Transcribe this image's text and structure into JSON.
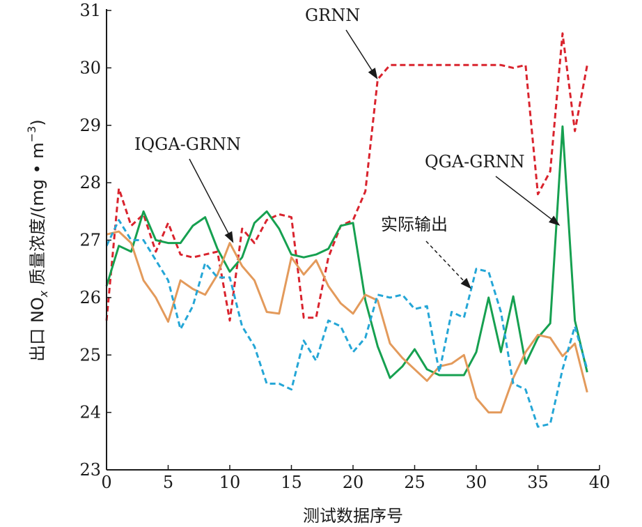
{
  "chart_data": {
    "type": "line",
    "xlabel": "测试数据序号",
    "ylabel_parts": {
      "pre": "出口 NO",
      "sub": "x",
      "mid": " 质量浓度/(mg • m",
      "sup": "−3",
      "post": ")"
    },
    "xlim": [
      0,
      40
    ],
    "ylim": [
      23,
      31
    ],
    "x_ticks": [
      0,
      5,
      10,
      15,
      20,
      25,
      30,
      35,
      40
    ],
    "y_ticks": [
      23,
      24,
      25,
      26,
      27,
      28,
      29,
      30,
      31
    ],
    "grid": false,
    "series": [
      {
        "name": "GRNN",
        "color": "#d9232d",
        "style": "dashed",
        "x": [
          0,
          1,
          2,
          3,
          4,
          5,
          6,
          7,
          8,
          9,
          10,
          11,
          12,
          13,
          14,
          15,
          16,
          17,
          18,
          19,
          20,
          21,
          22,
          23,
          24,
          25,
          26,
          27,
          28,
          29,
          30,
          31,
          32,
          33,
          34,
          35,
          36,
          37,
          38,
          39
        ],
        "y": [
          25.6,
          27.9,
          27.25,
          27.45,
          26.8,
          27.3,
          26.75,
          26.7,
          26.75,
          26.8,
          25.6,
          27.2,
          26.95,
          27.35,
          27.45,
          27.4,
          25.65,
          25.65,
          26.7,
          27.25,
          27.35,
          27.85,
          29.8,
          30.05,
          30.05,
          30.05,
          30.05,
          30.05,
          30.05,
          30.05,
          30.05,
          30.05,
          30.05,
          30.0,
          30.05,
          27.8,
          28.2,
          30.6,
          28.9,
          30.05
        ]
      },
      {
        "name": "QGA-GRNN",
        "color": "#16a050",
        "style": "solid",
        "x": [
          0,
          1,
          2,
          3,
          4,
          5,
          6,
          7,
          8,
          9,
          10,
          11,
          12,
          13,
          14,
          15,
          16,
          17,
          18,
          19,
          20,
          21,
          22,
          23,
          24,
          25,
          26,
          27,
          28,
          29,
          30,
          31,
          32,
          33,
          34,
          35,
          36,
          37,
          38,
          39
        ],
        "y": [
          26.2,
          26.9,
          26.8,
          27.5,
          27.0,
          26.95,
          26.95,
          27.25,
          27.4,
          26.85,
          26.45,
          26.7,
          27.3,
          27.5,
          27.2,
          26.75,
          26.7,
          26.75,
          26.85,
          27.25,
          27.3,
          25.95,
          25.15,
          24.6,
          24.8,
          25.1,
          24.75,
          24.65,
          24.65,
          24.65,
          25.05,
          26.0,
          25.05,
          26.02,
          24.85,
          25.3,
          25.55,
          28.98,
          25.6,
          24.7
        ]
      },
      {
        "name": "IQGA-GRNN",
        "color": "#e39a5b",
        "style": "solid",
        "x": [
          0,
          1,
          2,
          3,
          4,
          5,
          6,
          7,
          8,
          9,
          10,
          11,
          12,
          13,
          14,
          15,
          16,
          17,
          18,
          19,
          20,
          21,
          22,
          23,
          24,
          25,
          26,
          27,
          28,
          29,
          30,
          31,
          32,
          33,
          34,
          35,
          36,
          37,
          38,
          39
        ],
        "y": [
          27.1,
          27.15,
          26.95,
          26.3,
          26.0,
          25.58,
          26.3,
          26.15,
          26.05,
          26.4,
          26.95,
          26.55,
          26.3,
          25.75,
          25.72,
          26.7,
          26.4,
          26.65,
          26.2,
          25.9,
          25.72,
          26.05,
          25.95,
          25.2,
          24.95,
          24.75,
          24.55,
          24.8,
          24.85,
          25.0,
          24.25,
          24.0,
          24.0,
          24.6,
          25.05,
          25.35,
          25.3,
          24.98,
          25.2,
          24.35
        ]
      },
      {
        "name": "实际输出",
        "color": "#24a6d6",
        "style": "dashed",
        "x": [
          0,
          1,
          2,
          3,
          4,
          5,
          6,
          7,
          8,
          9,
          10,
          11,
          12,
          13,
          14,
          15,
          16,
          17,
          18,
          19,
          20,
          21,
          22,
          23,
          24,
          25,
          26,
          27,
          28,
          29,
          30,
          31,
          32,
          33,
          34,
          35,
          36,
          37,
          38,
          39
        ],
        "y": [
          26.9,
          27.35,
          27.0,
          27.0,
          26.65,
          26.3,
          25.45,
          25.85,
          26.6,
          26.35,
          26.35,
          25.5,
          25.15,
          24.5,
          24.5,
          24.4,
          25.25,
          24.9,
          25.6,
          25.5,
          25.05,
          25.3,
          26.05,
          26.0,
          26.05,
          25.8,
          25.85,
          24.7,
          25.75,
          25.65,
          26.5,
          26.45,
          25.75,
          24.5,
          24.4,
          23.75,
          23.8,
          24.75,
          25.5,
          24.75
        ]
      }
    ],
    "annotations": [
      {
        "text": "GRNN",
        "target": {
          "x": 22,
          "y": 29.8
        }
      },
      {
        "text": "IQGA-GRNN",
        "target": {
          "x": 10.3,
          "y": 26.95
        }
      },
      {
        "text": "QGA-GRNN",
        "target": {
          "x": 36.8,
          "y": 27.25
        }
      },
      {
        "text": "实际输出",
        "target": {
          "x": 29.6,
          "y": 26.15
        }
      }
    ]
  }
}
